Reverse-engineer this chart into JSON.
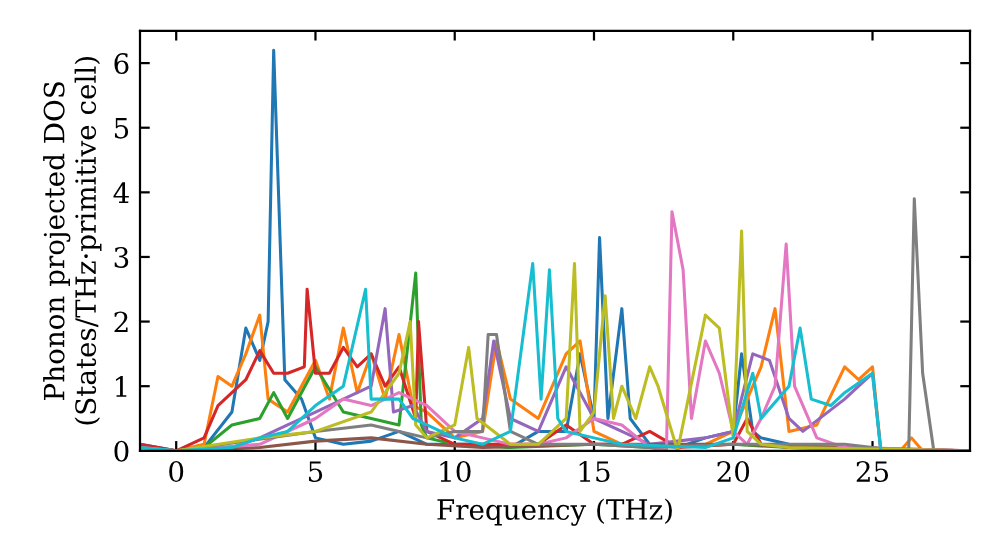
{
  "chart_data": {
    "type": "line",
    "xlabel": "Frequency (THz)",
    "ylabel": "Phonon projected DOS\n(States/THz·primitive cell)",
    "xlim": [
      -1.3,
      28.5
    ],
    "ylim": [
      0,
      6.5
    ],
    "xticks": [
      0,
      5,
      10,
      15,
      20,
      25
    ],
    "yticks": [
      0,
      1,
      2,
      3,
      4,
      5,
      6
    ],
    "marker": "none",
    "line_style": "solid",
    "series": [
      {
        "color": "#1f77b4",
        "x": [
          -1.3,
          0,
          1,
          2,
          2.5,
          3,
          3.3,
          3.5,
          3.9,
          4.5,
          5,
          6,
          7,
          8,
          9,
          10,
          11,
          12,
          13,
          14,
          14.5,
          15,
          15.2,
          15.5,
          16,
          16.3,
          17,
          18,
          19,
          20,
          20.3,
          20.7,
          21,
          22,
          23,
          24,
          25,
          28.5
        ],
        "values": [
          0.1,
          0,
          0.05,
          0.6,
          1.9,
          1.4,
          2,
          6.2,
          1.1,
          0.8,
          0.2,
          0.1,
          0.15,
          0.3,
          0.1,
          0.1,
          0.1,
          0.05,
          0.3,
          0.3,
          1.5,
          0.5,
          3.3,
          0.5,
          2.2,
          0.5,
          0.1,
          0.05,
          0.2,
          0.3,
          1.5,
          0.3,
          0.2,
          0.1,
          0.05,
          0.05,
          0.02,
          0
        ]
      },
      {
        "color": "#ff7f0e",
        "x": [
          -1.3,
          0,
          1,
          1.5,
          2,
          2.5,
          3,
          3.3,
          4,
          5,
          5.5,
          6,
          6.5,
          7,
          7.5,
          8,
          8.5,
          9,
          10,
          11,
          11.5,
          12,
          13,
          14,
          14.5,
          15,
          16,
          17,
          19,
          20,
          20.5,
          21,
          21.5,
          22,
          23,
          24,
          24.5,
          25,
          25.3,
          26,
          26.4,
          26.8,
          28.5
        ],
        "values": [
          0.05,
          0,
          0.1,
          1.15,
          1,
          1.5,
          2.1,
          0.8,
          0.6,
          1.4,
          0.8,
          1.9,
          0.9,
          1.5,
          0.8,
          1.8,
          0.7,
          0.6,
          0.2,
          0.3,
          1.7,
          0.8,
          0.5,
          1.5,
          1.7,
          0.3,
          0.1,
          0.05,
          0.1,
          0.3,
          0.8,
          1.3,
          2.2,
          0.3,
          0.4,
          1.3,
          1.1,
          1.3,
          0,
          0,
          0.2,
          0,
          0
        ]
      },
      {
        "color": "#2ca02c",
        "x": [
          -1.3,
          0,
          1,
          2,
          3,
          3.5,
          4,
          5,
          6,
          7,
          8,
          8.6,
          8.8,
          9,
          10,
          12,
          15,
          17,
          20,
          22,
          28.5
        ],
        "values": [
          0.05,
          0,
          0.05,
          0.4,
          0.5,
          0.9,
          0.5,
          1.3,
          0.6,
          0.5,
          0.4,
          2.75,
          0.4,
          0.2,
          0.1,
          0.05,
          0.1,
          0.05,
          0.1,
          0.05,
          0
        ]
      },
      {
        "color": "#d62728",
        "x": [
          -1.3,
          0,
          1,
          1.5,
          2.5,
          3,
          3.5,
          4,
          4.6,
          4.7,
          5,
          5.5,
          6,
          6.5,
          7,
          7.5,
          8,
          8.6,
          8.7,
          9,
          10,
          11,
          12,
          13,
          14,
          15,
          16,
          17,
          18,
          20,
          20.5,
          21,
          22,
          28.5
        ],
        "values": [
          0.1,
          0,
          0.2,
          0.7,
          1.1,
          1.55,
          1.2,
          1.2,
          1.3,
          2.5,
          1.2,
          1.2,
          1.6,
          1.3,
          1.5,
          1,
          1.3,
          0.5,
          2,
          0.3,
          0.1,
          0.1,
          0.1,
          0.1,
          0.4,
          0.1,
          0.1,
          0.3,
          0.05,
          0.1,
          0.5,
          0.1,
          0.05,
          0
        ]
      },
      {
        "color": "#9467bd",
        "x": [
          -1.3,
          0,
          2,
          3,
          4,
          5,
          6,
          7,
          7.5,
          7.8,
          8.5,
          9,
          10,
          11,
          11.4,
          12,
          13,
          14,
          15,
          16,
          17,
          19,
          20,
          20.7,
          21.3,
          22,
          22.5,
          24,
          24.5,
          25,
          25.3,
          28.5
        ],
        "values": [
          0.05,
          0,
          0.05,
          0.2,
          0.4,
          0.6,
          0.8,
          1,
          2.2,
          0.6,
          0.7,
          0.3,
          0.2,
          0.5,
          1.7,
          0.5,
          0.3,
          1.3,
          0.5,
          0.3,
          0.1,
          0.2,
          0.3,
          1.5,
          1.4,
          0.5,
          0.3,
          0.8,
          1,
          1.2,
          0,
          0
        ]
      },
      {
        "color": "#8c564b",
        "x": [
          -1.3,
          0,
          3,
          5,
          7,
          9,
          11,
          15,
          20,
          28.5
        ],
        "values": [
          0.05,
          0,
          0.05,
          0.15,
          0.2,
          0.1,
          0.05,
          0.1,
          0.1,
          0
        ]
      },
      {
        "color": "#e377c2",
        "x": [
          -1.3,
          0,
          3,
          5,
          6,
          7,
          8,
          9,
          10,
          11,
          12,
          13,
          14,
          15,
          16,
          17,
          17.6,
          17.8,
          18.2,
          18.5,
          19,
          19.5,
          20,
          20.5,
          21,
          21.5,
          21.9,
          22.2,
          23,
          24,
          28.5
        ],
        "values": [
          0.05,
          0,
          0.1,
          0.5,
          0.8,
          0.7,
          0.9,
          0.7,
          0.3,
          0.2,
          0.1,
          0.1,
          0.2,
          0.5,
          0.4,
          0.05,
          0,
          3.7,
          2.8,
          0.5,
          1.7,
          1.2,
          0.3,
          0.1,
          0.5,
          1,
          3.2,
          1,
          0.2,
          0.05,
          0
        ]
      },
      {
        "color": "#7f7f7f",
        "x": [
          -1.3,
          0,
          5,
          7,
          8,
          9,
          10,
          11,
          11.2,
          11.5,
          12,
          13,
          15,
          17,
          20,
          22,
          24,
          25,
          26,
          26.3,
          26.5,
          26.8,
          27.2,
          28.5
        ],
        "values": [
          0.03,
          0,
          0.3,
          0.4,
          0.3,
          0.2,
          0.3,
          0.3,
          1.8,
          1.8,
          0.3,
          0.1,
          0.1,
          0.05,
          0.1,
          0.1,
          0.1,
          0.05,
          0,
          0,
          3.9,
          1.2,
          0,
          0
        ]
      },
      {
        "color": "#bcbd22",
        "x": [
          -1.3,
          0,
          3,
          5,
          7,
          8,
          8.4,
          8.6,
          9,
          10,
          10.5,
          10.8,
          12,
          13,
          14,
          14.3,
          14.5,
          15,
          15.4,
          15.7,
          16,
          16.5,
          17,
          17.3,
          18,
          19,
          19.5,
          20,
          20.3,
          20.5,
          21,
          22,
          28.5
        ],
        "values": [
          0.03,
          0,
          0.2,
          0.3,
          0.6,
          1.2,
          2,
          0.4,
          0.2,
          0.4,
          1.6,
          0.5,
          0.1,
          0.1,
          0.5,
          2.9,
          0.3,
          0.6,
          2.4,
          0.5,
          1,
          0.5,
          1.3,
          1,
          0,
          2.1,
          1.9,
          0.2,
          3.4,
          0.3,
          0.1,
          0.05,
          0
        ]
      },
      {
        "color": "#17becf",
        "x": [
          -1.3,
          0,
          2,
          3,
          4,
          5,
          6,
          6.8,
          7,
          8,
          8.5,
          9,
          10,
          11,
          12,
          12.8,
          13.1,
          13.4,
          13.7,
          14,
          15,
          16,
          19,
          20,
          20.7,
          21,
          22,
          22.4,
          22.8,
          23.5,
          24,
          25,
          25.3,
          28.5
        ],
        "values": [
          0.05,
          0,
          0.05,
          0.2,
          0.3,
          0.7,
          1,
          2.5,
          0.8,
          0.8,
          0.5,
          0.4,
          0.2,
          0.1,
          0.3,
          2.9,
          0.8,
          2.8,
          0.5,
          0.3,
          0.2,
          0.1,
          0.05,
          0.2,
          1.2,
          0.5,
          1,
          1.9,
          0.8,
          0.7,
          0.9,
          1.2,
          0,
          0
        ]
      }
    ]
  }
}
